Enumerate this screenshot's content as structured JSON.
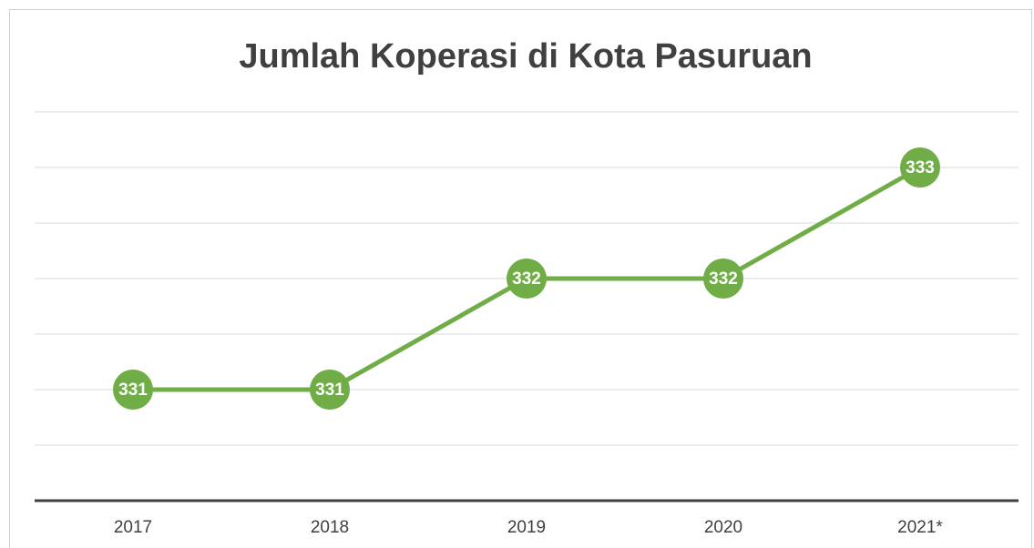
{
  "chart_data": {
    "type": "line",
    "title": "Jumlah Koperasi di Kota Pasuruan",
    "categories": [
      "2017",
      "2018",
      "2019",
      "2020",
      "2021*"
    ],
    "values": [
      331,
      331,
      332,
      332,
      333
    ],
    "color": "#70ad47",
    "ylim": [
      330,
      333.5
    ],
    "yticks": [
      330,
      330.5,
      331,
      331.5,
      332,
      332.5,
      333,
      333.5
    ],
    "grid": true
  }
}
